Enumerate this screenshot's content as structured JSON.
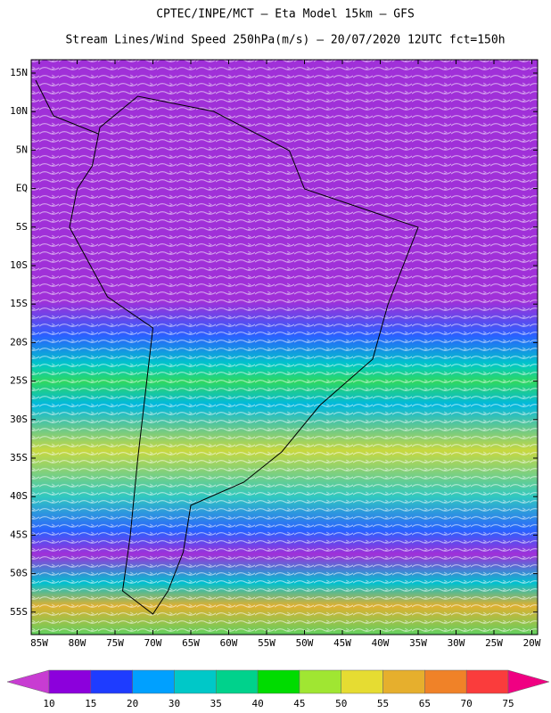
{
  "header": {
    "title": "CPTEC/INPE/MCT –  Eta Model 15km – GFS",
    "subtitle": "Stream Lines/Wind Speed 250hPa(m/s) – 20/07/2020 12UTC fct=150h"
  },
  "map": {
    "lat_labels": [
      "15N",
      "10N",
      "5N",
      "EQ",
      "5S",
      "10S",
      "15S",
      "20S",
      "25S",
      "30S",
      "35S",
      "40S",
      "45S",
      "50S",
      "55S"
    ],
    "lon_labels": [
      "85W",
      "80W",
      "75W",
      "70W",
      "65W",
      "60W",
      "55W",
      "50W",
      "45W",
      "40W",
      "35W",
      "30W",
      "25W",
      "20W"
    ]
  },
  "colorbar": {
    "labels": [
      10,
      15,
      20,
      30,
      35,
      40,
      45,
      50,
      55,
      65,
      70,
      75
    ],
    "colors": [
      "#8c00dc",
      "#1e3cff",
      "#00a0ff",
      "#00c8c8",
      "#00d28c",
      "#00dc00",
      "#a0e632",
      "#e6dc32",
      "#e6af2d",
      "#f08228",
      "#fa3c3c"
    ],
    "under_color": "#c83cd2",
    "over_color": "#f00082"
  }
}
